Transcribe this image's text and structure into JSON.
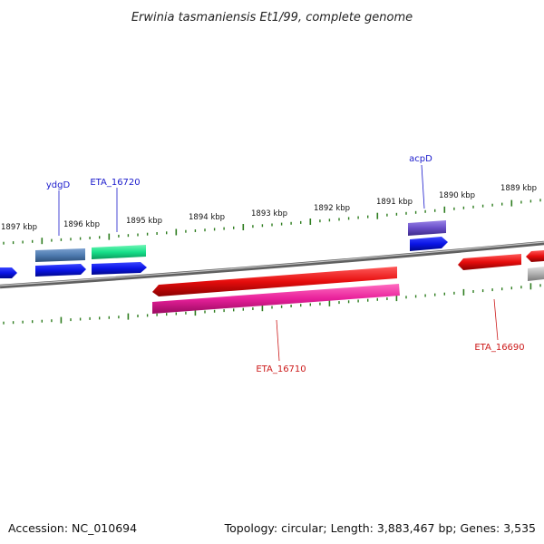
{
  "title": "Erwinia tasmaniensis Et1/99, complete genome",
  "accession": "Accession: NC_010694",
  "topology": "Topology: circular; Length: 3,883,467 bp; Genes: 3,535",
  "ticks": [
    "1897 kbp",
    "1896 kbp",
    "1895 kbp",
    "1894 kbp",
    "1893 kbp",
    "1892 kbp",
    "1891 kbp",
    "1890 kbp",
    "1889 kbp"
  ],
  "gene_labels": {
    "ydgD": "ydgD",
    "eta16720": "ETA_16720",
    "acpD": "acpD",
    "eta16710": "ETA_16710",
    "eta16690": "ETA_16690"
  },
  "colors": {
    "backbone": "#808080",
    "tick": "#2e7d1f",
    "forward_label": "#1a1acc",
    "reverse_label": "#cc1a1a",
    "blue": "#0a14e6",
    "steel": "#4f7bb0",
    "aqua": "#17e08a",
    "purple": "#6a4fc8",
    "red": "#e60d0d",
    "magenta": "#e8209a",
    "gray": "#b0b0b0"
  }
}
